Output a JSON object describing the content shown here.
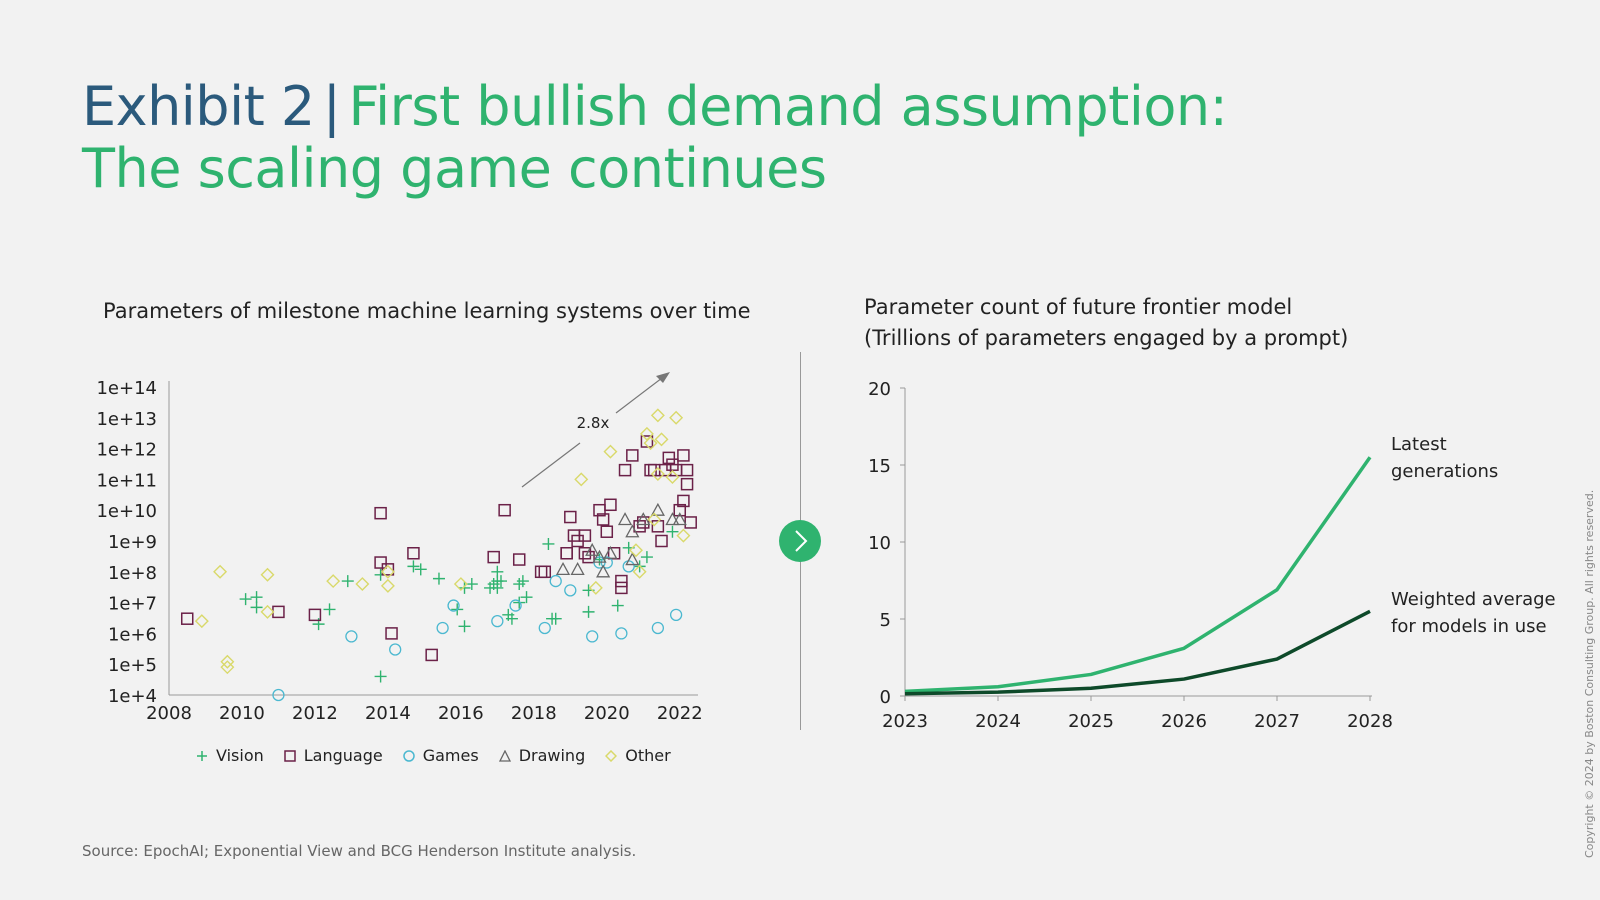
{
  "header": {
    "exhibit_label": "Exhibit 2",
    "separator": "|",
    "headline_line1": "First bullish demand assumption:",
    "headline_line2": "The scaling game continues"
  },
  "colors": {
    "exhibit_blue": "#2b5a7c",
    "headline_green": "#2fb36f",
    "vision": "#2fb36f",
    "language": "#6b2148",
    "games": "#4bb8d0",
    "drawing": "#666666",
    "other": "#d9d96a",
    "latest_generations": "#2fb36f",
    "weighted_average": "#0e4a2a"
  },
  "left_chart": {
    "title": "Parameters of milestone machine learning systems over time",
    "annotation": "2.8x",
    "legend": [
      {
        "key": "vision",
        "label": "Vision",
        "marker": "+"
      },
      {
        "key": "language",
        "label": "Language",
        "marker": "□"
      },
      {
        "key": "games",
        "label": "Games",
        "marker": "○"
      },
      {
        "key": "drawing",
        "label": "Drawing",
        "marker": "△"
      },
      {
        "key": "other",
        "label": "Other",
        "marker": "◇"
      }
    ]
  },
  "right_chart": {
    "title_line1": "Parameter count of future frontier model",
    "title_line2": "(Trillions of parameters engaged by a prompt)",
    "label_latest_line1": "Latest",
    "label_latest_line2": "generations",
    "label_weighted_line1": "Weighted average",
    "label_weighted_line2": "for models in use"
  },
  "navigation": {
    "next_icon": "chevron-right-icon"
  },
  "footer": {
    "source": "Source: EpochAI; Exponential View and BCG Henderson Institute analysis.",
    "copyright": "Copyright © 2024 by Boston Consulting Group. All rights reserved."
  },
  "chart_data": [
    {
      "type": "scatter",
      "title": "Parameters of milestone machine learning systems over time",
      "xlabel": "",
      "ylabel": "",
      "x_scale": "linear",
      "y_scale": "log",
      "xlim": [
        2008,
        2022.5
      ],
      "ylim": [
        10000.0,
        100000000000000.0
      ],
      "x_ticks": [
        "2008",
        "2010",
        "2012",
        "2014",
        "2016",
        "2018",
        "2020",
        "2022"
      ],
      "y_ticks": [
        "1e+4",
        "1e+5",
        "1e+6",
        "1e+7",
        "1e+8",
        "1e+9",
        "1e+10",
        "1e+11",
        "1e+12",
        "1e+13",
        "1e+14"
      ],
      "legend_position": "bottom",
      "grid": false,
      "annotation": {
        "text": "2.8x",
        "type": "trend-arrow",
        "from": [
          2017.5,
          100000000000.0
        ],
        "to": [
          2021.7,
          100000000000000.0
        ]
      },
      "series": [
        {
          "name": "Vision",
          "marker": "plus",
          "points": [
            [
              2010.1,
              13000000.0
            ],
            [
              2010.4,
              15000000.0
            ],
            [
              2010.4,
              7000000.0
            ],
            [
              2012.1,
              2000000.0
            ],
            [
              2012.4,
              6000000.0
            ],
            [
              2012.9,
              50000000.0
            ],
            [
              2013.8,
              40000.0
            ],
            [
              2013.8,
              80000000.0
            ],
            [
              2014.7,
              150000000.0
            ],
            [
              2014.9,
              120000000.0
            ],
            [
              2015.4,
              60000000.0
            ],
            [
              2015.9,
              6000000.0
            ],
            [
              2016.1,
              30000000.0
            ],
            [
              2016.1,
              1700000.0
            ],
            [
              2016.3,
              40000000.0
            ],
            [
              2016.8,
              30000000.0
            ],
            [
              2016.9,
              40000000.0
            ],
            [
              2017.0,
              30000000.0
            ],
            [
              2017.0,
              50000000.0
            ],
            [
              2017.0,
              100000000.0
            ],
            [
              2017.1,
              50000000.0
            ],
            [
              2017.3,
              4000000.0
            ],
            [
              2017.4,
              3000000.0
            ],
            [
              2017.6,
              40000000.0
            ],
            [
              2017.6,
              10000000.0
            ],
            [
              2017.7,
              50000000.0
            ],
            [
              2017.8,
              15000000.0
            ],
            [
              2018.4,
              800000000.0
            ],
            [
              2018.5,
              3000000.0
            ],
            [
              2018.6,
              3000000.0
            ],
            [
              2019.5,
              25000000.0
            ],
            [
              2019.5,
              5000000.0
            ],
            [
              2019.8,
              250000000.0
            ],
            [
              2020.3,
              8000000.0
            ],
            [
              2020.6,
              600000000.0
            ],
            [
              2020.9,
              150000000.0
            ],
            [
              2021.1,
              300000000.0
            ],
            [
              2021.8,
              2000000000.0
            ]
          ]
        },
        {
          "name": "Language",
          "marker": "square",
          "points": [
            [
              2008.5,
              3000000.0
            ],
            [
              2011.0,
              5000000.0
            ],
            [
              2012.0,
              4000000.0
            ],
            [
              2013.8,
              8000000000.0
            ],
            [
              2013.8,
              200000000.0
            ],
            [
              2014.1,
              1000000.0
            ],
            [
              2014.0,
              120000000.0
            ],
            [
              2014.7,
              400000000.0
            ],
            [
              2015.2,
              200000.0
            ],
            [
              2016.9,
              300000000.0
            ],
            [
              2017.2,
              10000000000.0
            ],
            [
              2017.6,
              250000000.0
            ],
            [
              2018.2,
              100000000.0
            ],
            [
              2018.3,
              100000000.0
            ],
            [
              2018.9,
              400000000.0
            ],
            [
              2018.9,
              400000000.0
            ],
            [
              2019.0,
              6000000000.0
            ],
            [
              2019.1,
              1500000000.0
            ],
            [
              2019.2,
              1000000000.0
            ],
            [
              2019.4,
              1500000000.0
            ],
            [
              2019.4,
              400000000.0
            ],
            [
              2019.5,
              300000000.0
            ],
            [
              2019.8,
              10000000000.0
            ],
            [
              2019.9,
              5000000000.0
            ],
            [
              2020.0,
              2000000000.0
            ],
            [
              2020.1,
              15000000000.0
            ],
            [
              2020.2,
              400000000.0
            ],
            [
              2020.4,
              50000000.0
            ],
            [
              2020.4,
              30000000.0
            ],
            [
              2020.5,
              200000000000.0
            ],
            [
              2020.7,
              600000000000.0
            ],
            [
              2020.9,
              3000000000.0
            ],
            [
              2021.0,
              4000000000.0
            ],
            [
              2021.1,
              1700000000000.0
            ],
            [
              2021.2,
              200000000000.0
            ],
            [
              2021.3,
              200000000000.0
            ],
            [
              2021.4,
              3000000000.0
            ],
            [
              2021.5,
              1000000000.0
            ],
            [
              2021.6,
              200000000000.0
            ],
            [
              2021.7,
              500000000000.0
            ],
            [
              2021.8,
              300000000000.0
            ],
            [
              2021.9,
              200000000000.0
            ],
            [
              2022.0,
              10000000000.0
            ],
            [
              2022.1,
              600000000000.0
            ],
            [
              2022.1,
              20000000000.0
            ],
            [
              2022.2,
              200000000000.0
            ],
            [
              2022.2,
              70000000000.0
            ],
            [
              2022.3,
              4000000000.0
            ]
          ]
        },
        {
          "name": "Games",
          "marker": "circle",
          "points": [
            [
              2011.0,
              10000.0
            ],
            [
              2013.0,
              800000.0
            ],
            [
              2014.2,
              300000.0
            ],
            [
              2015.5,
              1500000.0
            ],
            [
              2015.8,
              8000000.0
            ],
            [
              2017.0,
              2500000.0
            ],
            [
              2017.5,
              8000000.0
            ],
            [
              2018.3,
              1500000.0
            ],
            [
              2018.6,
              50000000.0
            ],
            [
              2019.0,
              25000000.0
            ],
            [
              2019.6,
              800000.0
            ],
            [
              2019.8,
              200000000.0
            ],
            [
              2020.0,
              200000000.0
            ],
            [
              2020.4,
              1000000.0
            ],
            [
              2020.6,
              150000000.0
            ],
            [
              2021.4,
              1500000.0
            ],
            [
              2021.9,
              4000000.0
            ]
          ]
        },
        {
          "name": "Drawing",
          "marker": "triangle",
          "points": [
            [
              2018.8,
              120000000.0
            ],
            [
              2019.2,
              120000000.0
            ],
            [
              2019.6,
              500000000.0
            ],
            [
              2019.8,
              300000000.0
            ],
            [
              2019.9,
              100000000.0
            ],
            [
              2020.1,
              400000000.0
            ],
            [
              2020.5,
              5000000000.0
            ],
            [
              2020.7,
              2000000000.0
            ],
            [
              2020.7,
              250000000.0
            ],
            [
              2021.0,
              5000000000.0
            ],
            [
              2021.4,
              10000000000.0
            ],
            [
              2021.8,
              5000000000.0
            ],
            [
              2022.0,
              5000000000.0
            ]
          ]
        },
        {
          "name": "Other",
          "marker": "diamond",
          "points": [
            [
              2008.9,
              2500000.0
            ],
            [
              2009.4,
              100000000.0
            ],
            [
              2009.6,
              120000.0
            ],
            [
              2009.6,
              80000.0
            ],
            [
              2010.7,
              80000000.0
            ],
            [
              2010.7,
              5000000.0
            ],
            [
              2012.5,
              50000000.0
            ],
            [
              2013.3,
              40000000.0
            ],
            [
              2014.0,
              35000000.0
            ],
            [
              2014.0,
              100000000.0
            ],
            [
              2016.0,
              40000000.0
            ],
            [
              2019.3,
              100000000000.0
            ],
            [
              2019.7,
              30000000.0
            ],
            [
              2020.1,
              800000000000.0
            ],
            [
              2020.8,
              500000000.0
            ],
            [
              2020.9,
              100000000.0
            ],
            [
              2021.1,
              3000000000000.0
            ],
            [
              2021.2,
              1500000000000.0
            ],
            [
              2021.3,
              5000000000.0
            ],
            [
              2021.4,
              12000000000000.0
            ],
            [
              2021.4,
              150000000000.0
            ],
            [
              2021.5,
              2000000000000.0
            ],
            [
              2021.8,
              120000000000.0
            ],
            [
              2021.9,
              10000000000000.0
            ],
            [
              2022.1,
              1500000000.0
            ]
          ]
        }
      ]
    },
    {
      "type": "line",
      "title": "Parameter count of future frontier model (Trillions of parameters engaged by a prompt)",
      "xlabel": "",
      "ylabel": "Trillions of parameters",
      "categories": [
        "2023",
        "2024",
        "2025",
        "2026",
        "2027",
        "2028"
      ],
      "ylim": [
        0,
        20
      ],
      "y_ticks": [
        0,
        5,
        10,
        15,
        20
      ],
      "grid": false,
      "legend_position": "inline-right",
      "series": [
        {
          "name": "Latest generations",
          "values": [
            0.3,
            0.6,
            1.4,
            3.1,
            6.9,
            15.5
          ]
        },
        {
          "name": "Weighted average for models in use",
          "values": [
            0.15,
            0.25,
            0.5,
            1.1,
            2.4,
            5.5
          ]
        }
      ]
    }
  ]
}
